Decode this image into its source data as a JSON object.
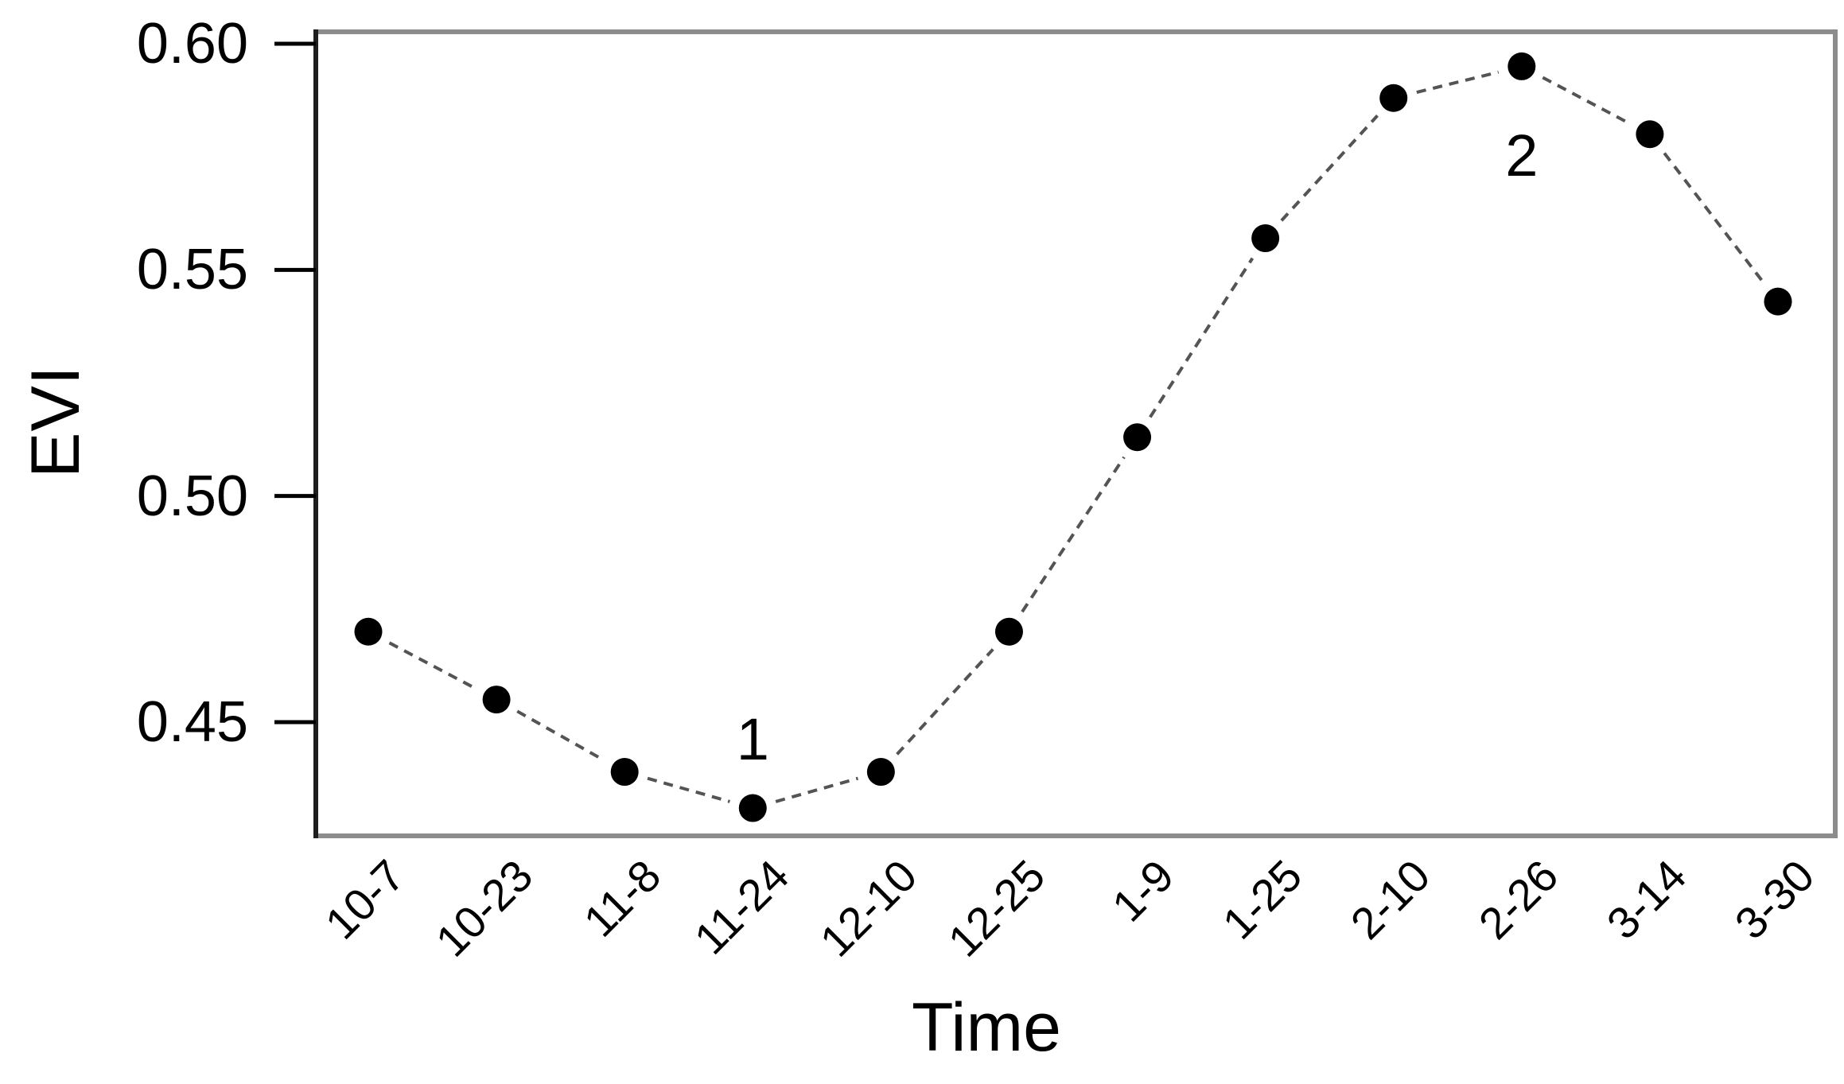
{
  "chart_data": {
    "type": "line",
    "title": "",
    "xlabel": "Time",
    "ylabel": "EVI",
    "categories": [
      "10-7",
      "10-23",
      "11-8",
      "11-24",
      "12-10",
      "12-25",
      "1-9",
      "1-25",
      "2-10",
      "2-26",
      "3-14",
      "3-30"
    ],
    "series": [
      {
        "name": "EVI",
        "values": [
          0.47,
          0.455,
          0.439,
          0.431,
          0.439,
          0.47,
          0.513,
          0.557,
          0.588,
          0.595,
          0.58,
          0.543
        ],
        "marker": "filled-circle",
        "line_style": "dashed"
      }
    ],
    "ylim": [
      0.425,
      0.603
    ],
    "yticks": [
      0.45,
      0.5,
      0.55,
      0.6
    ],
    "ytick_labels": [
      "0.45",
      "0.50",
      "0.55",
      "0.60"
    ],
    "xtick_rotation_deg": 45,
    "grid": false,
    "legend_position": "none",
    "annotations": [
      {
        "text": "1",
        "category": "11-24",
        "placement": "above"
      },
      {
        "text": "2",
        "category": "2-26",
        "placement": "below"
      }
    ],
    "colors": {
      "marker": "#000000",
      "line": "#545454",
      "box_border": "#8c8c8c",
      "y_axis_line": "#1e1e1e",
      "tick": "#000000",
      "text": "#000000",
      "background": "#ffffff"
    }
  }
}
